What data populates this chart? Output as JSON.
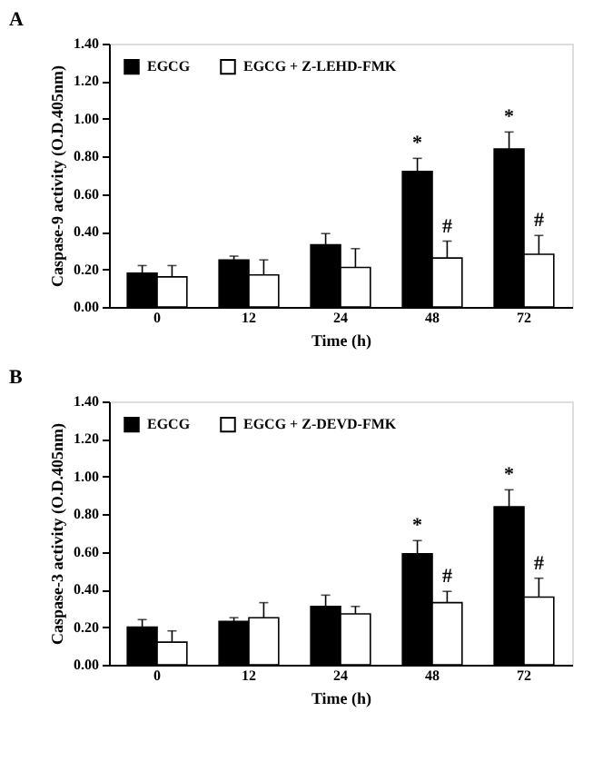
{
  "chart_data": [
    {
      "type": "bar",
      "title": "A",
      "xlabel": "Time (h)",
      "ylabel": "Caspase-9 activity (O.D.405nm)",
      "categories": [
        "0",
        "12",
        "24",
        "48",
        "72"
      ],
      "series": [
        {
          "name": "EGCG",
          "color": "#000000",
          "values": [
            0.18,
            0.25,
            0.33,
            0.72,
            0.84
          ],
          "errors": [
            [
              0.18,
              0.22
            ],
            [
              0.25,
              0.27
            ],
            [
              0.33,
              0.39
            ],
            [
              0.72,
              0.79
            ],
            [
              0.84,
              0.93
            ]
          ]
        },
        {
          "name": "EGCG + Z-LEHD-FMK",
          "color": "#ffffff",
          "values": [
            0.16,
            0.17,
            0.21,
            0.26,
            0.28
          ],
          "errors": [
            [
              0.16,
              0.22
            ],
            [
              0.17,
              0.25
            ],
            [
              0.21,
              0.31
            ],
            [
              0.26,
              0.35
            ],
            [
              0.28,
              0.38
            ]
          ]
        }
      ],
      "ylim": [
        0,
        1.4
      ],
      "yticks": [
        {
          "value": 0,
          "label": "0.00"
        },
        {
          "value": 0.2,
          "label": "0.20"
        },
        {
          "value": 0.4,
          "label": "0.40"
        },
        {
          "value": 0.6,
          "label": "0.60"
        },
        {
          "value": 0.8,
          "label": "0.80"
        },
        {
          "value": 1.0,
          "label": "1.00"
        },
        {
          "value": 1.2,
          "label": "1.20"
        },
        {
          "value": 1.4,
          "label": "1.40"
        }
      ],
      "annotations": [
        {
          "text": "*",
          "x": "48",
          "y": 0.72
        },
        {
          "text": "*",
          "x": "72",
          "y": 0.84
        },
        {
          "text": "#",
          "x": "48",
          "y": 0.26
        },
        {
          "text": "#",
          "x": "72",
          "y": 0.28
        }
      ],
      "legend": "top left",
      "grid": false
    },
    {
      "type": "bar",
      "title": "B",
      "xlabel": "Time (h)",
      "ylabel": "Caspase-3 activity (O.D.405nm)",
      "categories": [
        "0",
        "12",
        "24",
        "48",
        "72"
      ],
      "series": [
        {
          "name": "EGCG",
          "color": "#000000",
          "values": [
            0.2,
            0.23,
            0.31,
            0.59,
            0.84
          ],
          "errors": [
            [
              0.2,
              0.24
            ],
            [
              0.23,
              0.25
            ],
            [
              0.31,
              0.37
            ],
            [
              0.59,
              0.66
            ],
            [
              0.84,
              0.93
            ]
          ]
        },
        {
          "name": "EGCG + Z-DEVD-FMK",
          "color": "#ffffff",
          "values": [
            0.12,
            0.25,
            0.27,
            0.33,
            0.36
          ],
          "errors": [
            [
              0.12,
              0.18
            ],
            [
              0.25,
              0.33
            ],
            [
              0.27,
              0.31
            ],
            [
              0.33,
              0.39
            ],
            [
              0.36,
              0.46
            ]
          ]
        }
      ],
      "ylim": [
        0,
        1.4
      ],
      "yticks": [
        {
          "value": 0,
          "label": "0.00"
        },
        {
          "value": 0.2,
          "label": "0.20"
        },
        {
          "value": 0.4,
          "label": "0.40"
        },
        {
          "value": 0.6,
          "label": "0.60"
        },
        {
          "value": 0.8,
          "label": "0.80"
        },
        {
          "value": 1.0,
          "label": "1.00"
        },
        {
          "value": 1.2,
          "label": "1.20"
        },
        {
          "value": 1.4,
          "label": "1.40"
        }
      ],
      "annotations": [
        {
          "text": "*",
          "x": "48",
          "y": 0.59
        },
        {
          "text": "*",
          "x": "72",
          "y": 0.84
        },
        {
          "text": "#",
          "x": "48",
          "y": 0.33
        },
        {
          "text": "#",
          "x": "72",
          "y": 0.36
        }
      ],
      "legend": "top left",
      "grid": false
    }
  ]
}
